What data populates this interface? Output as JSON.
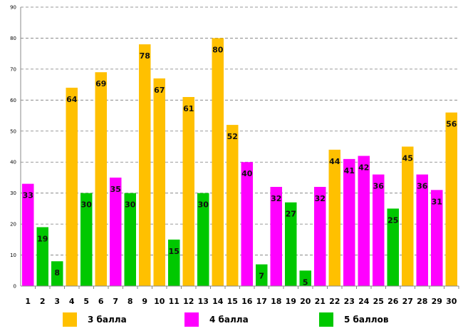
{
  "chart_data": {
    "type": "bar",
    "title": "",
    "xlabel": "",
    "ylabel": "",
    "ylim": [
      0,
      90
    ],
    "yticks": [
      0,
      10,
      20,
      30,
      40,
      50,
      60,
      70,
      80,
      90
    ],
    "grid": true,
    "legend_position": "bottom",
    "categories": [
      "1",
      "2",
      "3",
      "4",
      "5",
      "6",
      "7",
      "8",
      "9",
      "10",
      "11",
      "12",
      "13",
      "14",
      "15",
      "16",
      "17",
      "18",
      "19",
      "20",
      "21",
      "22",
      "23",
      "24",
      "25",
      "26",
      "27",
      "28",
      "29",
      "30"
    ],
    "values": [
      33,
      19,
      8,
      64,
      30,
      69,
      35,
      30,
      78,
      67,
      15,
      61,
      30,
      80,
      52,
      40,
      7,
      32,
      27,
      5,
      32,
      44,
      41,
      42,
      36,
      25,
      45,
      36,
      31,
      56
    ],
    "bar_series": [
      "4 балла",
      "5 баллов",
      "5 баллов",
      "3 балла",
      "5 баллов",
      "3 балла",
      "4 балла",
      "5 баллов",
      "3 балла",
      "3 балла",
      "5 баллов",
      "3 балла",
      "5 баллов",
      "3 балла",
      "3 балла",
      "4 балла",
      "5 баллов",
      "4 балла",
      "5 баллов",
      "5 баллов",
      "4 балла",
      "3 балла",
      "4 балла",
      "4 балла",
      "4 балла",
      "5 баллов",
      "3 балла",
      "4 балла",
      "4 балла",
      "3 балла"
    ],
    "series": [
      {
        "name": "3 балла",
        "color": "#FFC000"
      },
      {
        "name": "4 балла",
        "color": "#FF00FF"
      },
      {
        "name": "5 баллов",
        "color": "#00C800"
      }
    ]
  }
}
